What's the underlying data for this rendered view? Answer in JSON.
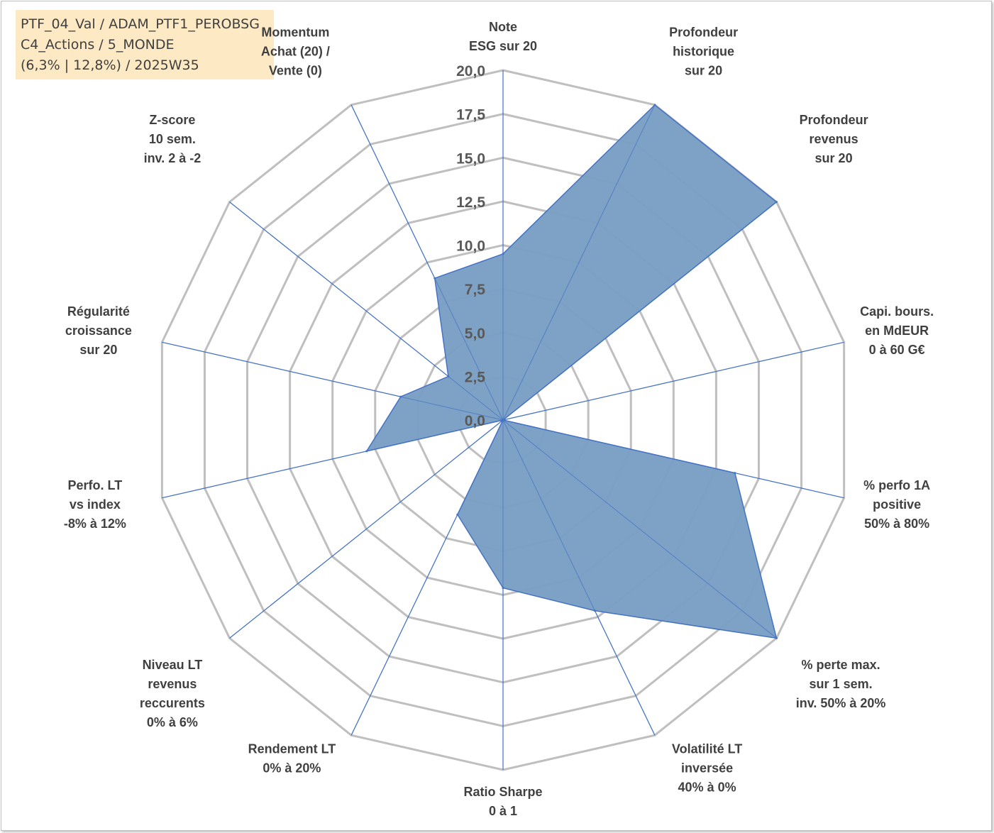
{
  "info_box": {
    "line1": "PTF_04_Val / ADAM_PTF1_PEROBSG",
    "line2": "C4_Actions / 5_MONDE",
    "line3": "(6,3% | 12,8%) / 2025W35"
  },
  "colors": {
    "fill": "#7a9fc4",
    "series_line": "#4472c4",
    "spoke": "#4472c4",
    "grid": "#bfbfbf"
  },
  "chart_data": {
    "type": "radar",
    "ylim": [
      0,
      20
    ],
    "tick_labels": [
      "0,0",
      "2,5",
      "5,0",
      "7,5",
      "10,0",
      "12,5",
      "15,0",
      "17,5",
      "20,0"
    ],
    "grid": true,
    "categories": [
      [
        "Note",
        "ESG sur 20"
      ],
      [
        "Profondeur",
        "historique",
        "sur 20"
      ],
      [
        "Profondeur",
        "revenus",
        "sur 20"
      ],
      [
        "Capi. bours.",
        "en MdEUR",
        "0 à 60 G€"
      ],
      [
        "% perfo 1A",
        "positive",
        "50% à 80%"
      ],
      [
        "% perte max.",
        "sur 1 sem.",
        "inv. 50% à 20%"
      ],
      [
        "Volatilité LT",
        "inversée",
        "40% à 0%"
      ],
      [
        "Ratio Sharpe",
        "0 à 1"
      ],
      [
        "Rendement LT",
        "0% à 20%"
      ],
      [
        "Niveau LT",
        "revenus",
        "reccurents",
        "0% à 6%"
      ],
      [
        "Perfo. LT",
        "vs index",
        "-8% à 12%"
      ],
      [
        "Régularité",
        "croissance",
        "sur 20"
      ],
      [
        "Z-score",
        "10 sem.",
        "inv. 2 à -2"
      ],
      [
        "Momentum",
        "Achat (20) /",
        "Vente (0)"
      ]
    ],
    "values": [
      9.5,
      20.0,
      20.0,
      0.0,
      13.6,
      20.0,
      12.1,
      9.6,
      6.0,
      0.0,
      8.0,
      6.0,
      4.0,
      9.0
    ]
  }
}
